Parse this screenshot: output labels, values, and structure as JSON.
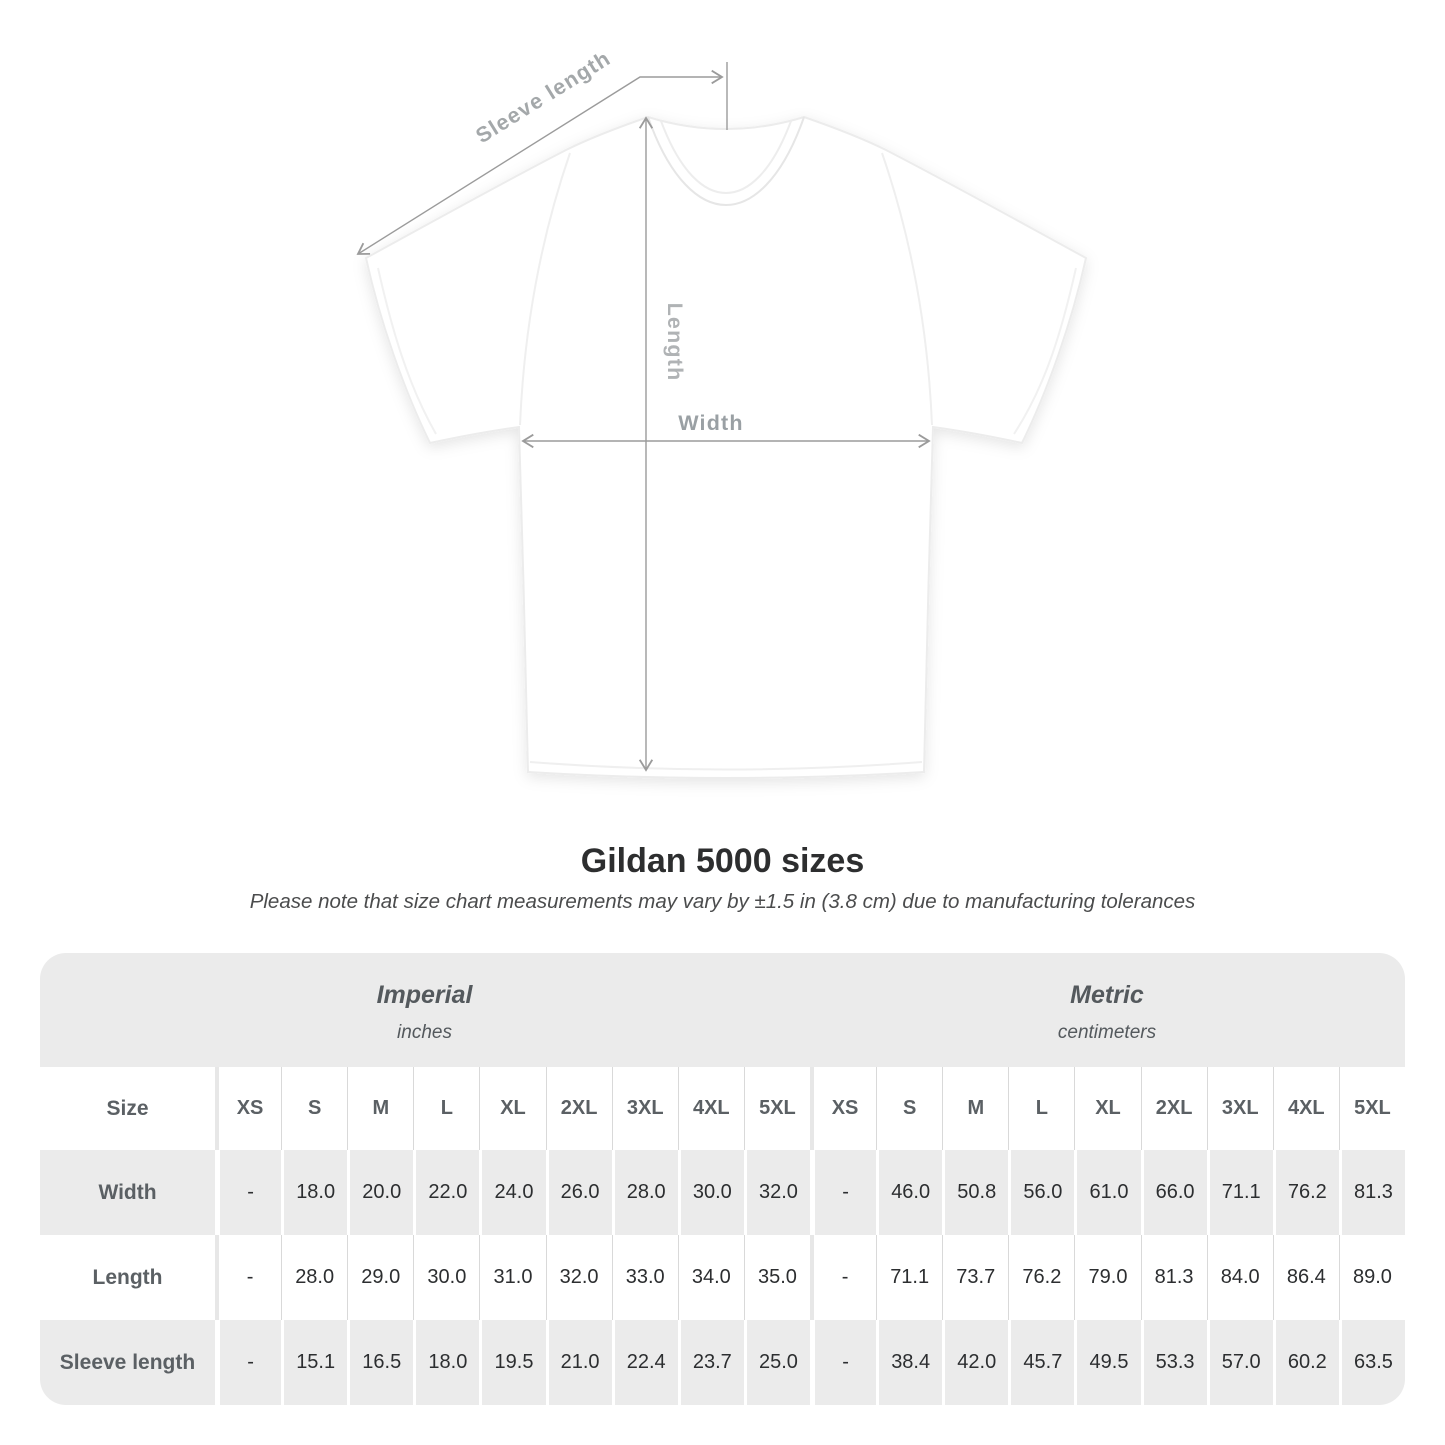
{
  "page": {
    "background": "#ffffff"
  },
  "shirt_diagram": {
    "sleeve_length_label": "Sleeve length",
    "length_label": "Length",
    "width_label": "Width",
    "line_color": "#9b9b9b",
    "label_color": "#a4a8aa"
  },
  "heading": {
    "title": "Gildan 5000 sizes",
    "subtitle": "Please note that size chart measurements may vary by ±1.5 in (3.8 cm) due to manufacturing tolerances"
  },
  "size_table": {
    "band_bg": "#ebebeb",
    "groups": [
      {
        "name": "Imperial",
        "unit": "inches"
      },
      {
        "name": "Metric",
        "unit": "centimeters"
      }
    ],
    "corner_label": "Size",
    "sizes": [
      "XS",
      "S",
      "M",
      "L",
      "XL",
      "2XL",
      "3XL",
      "4XL",
      "5XL"
    ],
    "rows": [
      {
        "label": "Width",
        "imperial": [
          "-",
          "18.0",
          "20.0",
          "22.0",
          "24.0",
          "26.0",
          "28.0",
          "30.0",
          "32.0"
        ],
        "metric": [
          "-",
          "46.0",
          "50.8",
          "56.0",
          "61.0",
          "66.0",
          "71.1",
          "76.2",
          "81.3"
        ]
      },
      {
        "label": "Length",
        "imperial": [
          "-",
          "28.0",
          "29.0",
          "30.0",
          "31.0",
          "32.0",
          "33.0",
          "34.0",
          "35.0"
        ],
        "metric": [
          "-",
          "71.1",
          "73.7",
          "76.2",
          "79.0",
          "81.3",
          "84.0",
          "86.4",
          "89.0"
        ]
      },
      {
        "label": "Sleeve length",
        "imperial": [
          "-",
          "15.1",
          "16.5",
          "18.0",
          "19.5",
          "21.0",
          "22.4",
          "23.7",
          "25.0"
        ],
        "metric": [
          "-",
          "38.4",
          "42.0",
          "45.7",
          "49.5",
          "53.3",
          "57.0",
          "60.2",
          "63.5"
        ]
      }
    ]
  }
}
